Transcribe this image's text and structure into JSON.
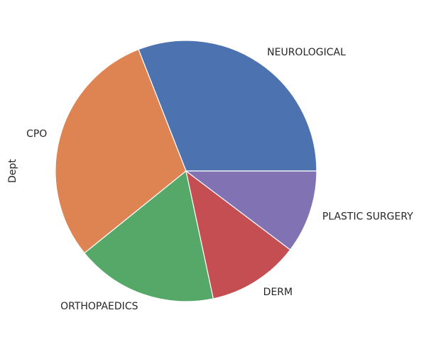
{
  "chart_data": {
    "type": "pie",
    "title": "",
    "ylabel": "Dept",
    "categories": [
      "NEUROLOGICAL",
      "CPO",
      "ORTHOPAEDICS",
      "DERM",
      "PLASTIC SURGERY"
    ],
    "values": [
      30,
      29,
      17,
      11,
      10
    ],
    "colors": [
      "#4c72b0",
      "#dd8452",
      "#55a868",
      "#c44e52",
      "#8172b3"
    ],
    "start_angle_deg": 0,
    "direction": "counterclockwise",
    "legend": "none"
  }
}
